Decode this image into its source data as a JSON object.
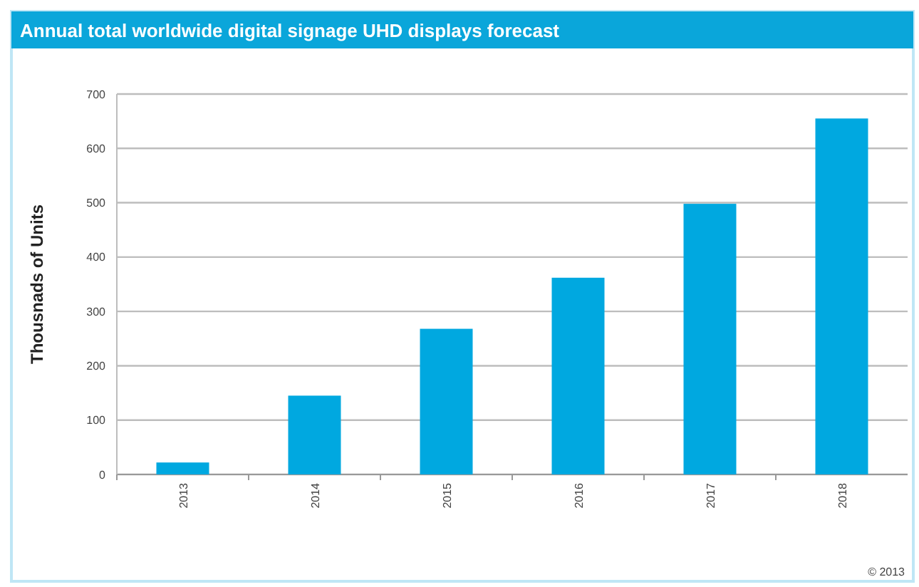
{
  "chart_data": {
    "type": "bar",
    "title": "Annual total worldwide digital signage UHD displays forecast",
    "ylabel": "Thousnads of Units",
    "categories": [
      "2013",
      "2014",
      "2015",
      "2016",
      "2017",
      "2018"
    ],
    "values": [
      22,
      145,
      268,
      362,
      498,
      655
    ],
    "color": "#00a8e0",
    "ylim": [
      0,
      700
    ],
    "yticks": [
      0,
      100,
      200,
      300,
      400,
      500,
      600,
      700
    ],
    "grid": "y",
    "annotations": [
      "© 2013"
    ]
  }
}
